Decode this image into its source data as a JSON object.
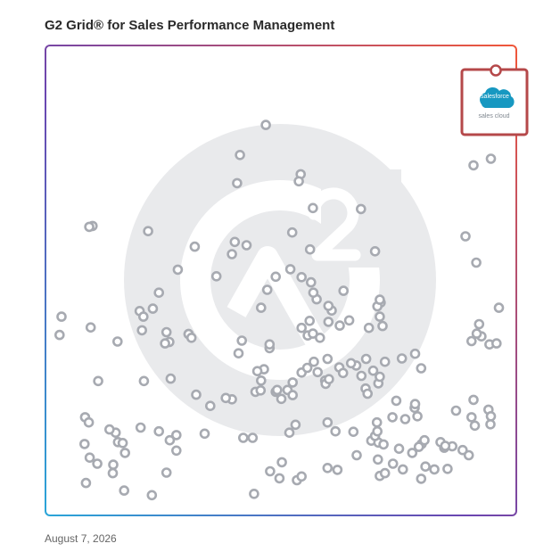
{
  "title": "G2 Grid® for Sales Performance Management",
  "date": "August 7, 2026",
  "colors": {
    "highlight": "#b5484a",
    "point": "#a7aab1",
    "watermark": "#e9eaec",
    "salesforce_blue": "#1798c1"
  },
  "highlight_logo": {
    "brand": "salesforce",
    "product": "sales cloud"
  },
  "chart_data": {
    "type": "scatter",
    "xlabel": "",
    "ylabel": "",
    "xlim": [
      0,
      100
    ],
    "ylim": [
      0,
      100
    ],
    "grid": "quadrants at 50/50",
    "highlighted": {
      "label": "salesforce sales cloud",
      "x": 96,
      "y": 94
    },
    "points": [
      [
        46.8,
        83.1
      ],
      [
        41.3,
        76.7
      ],
      [
        54.2,
        72.6
      ],
      [
        53.8,
        71.1
      ],
      [
        40.7,
        70.7
      ],
      [
        56.4,
        49.6
      ],
      [
        52.0,
        52.4
      ],
      [
        54.4,
        50.7
      ],
      [
        90.9,
        74.5
      ],
      [
        94.6,
        75.9
      ],
      [
        56.8,
        65.4
      ],
      [
        67.0,
        65.2
      ],
      [
        52.4,
        60.2
      ],
      [
        21.8,
        60.5
      ],
      [
        42.7,
        57.5
      ],
      [
        39.6,
        55.6
      ],
      [
        56.2,
        56.6
      ],
      [
        28.1,
        52.3
      ],
      [
        40.2,
        58.2
      ],
      [
        10.0,
        61.6
      ],
      [
        9.3,
        61.4
      ],
      [
        89.2,
        59.4
      ],
      [
        91.5,
        53.8
      ],
      [
        70.0,
        56.2
      ],
      [
        31.7,
        57.2
      ],
      [
        36.3,
        50.9
      ],
      [
        48.9,
        50.8
      ],
      [
        24.1,
        47.4
      ],
      [
        20.0,
        43.5
      ],
      [
        22.8,
        44.0
      ],
      [
        47.1,
        48.0
      ],
      [
        45.8,
        44.2
      ],
      [
        54.4,
        39.9
      ],
      [
        55.7,
        38.3
      ],
      [
        56.8,
        38.7
      ],
      [
        58.3,
        37.8
      ],
      [
        63.3,
        47.8
      ],
      [
        62.5,
        40.4
      ],
      [
        60.8,
        43.6
      ],
      [
        60.1,
        44.6
      ],
      [
        56.1,
        41.4
      ],
      [
        57.6,
        46.0
      ],
      [
        56.9,
        47.4
      ],
      [
        60.1,
        41.2
      ],
      [
        64.5,
        41.5
      ],
      [
        68.7,
        39.9
      ],
      [
        71.2,
        45.3
      ],
      [
        70.5,
        44.5
      ],
      [
        71.0,
        45.9
      ],
      [
        71.6,
        40.3
      ],
      [
        71.0,
        42.3
      ],
      [
        92.6,
        38.1
      ],
      [
        90.5,
        37.1
      ],
      [
        94.3,
        36.4
      ],
      [
        91.6,
        38.7
      ],
      [
        92.1,
        40.7
      ],
      [
        96.3,
        44.2
      ],
      [
        20.5,
        39.4
      ],
      [
        20.8,
        42.3
      ],
      [
        30.4,
        38.6
      ],
      [
        30.4,
        38.6
      ],
      [
        25.7,
        39.0
      ],
      [
        26.3,
        36.9
      ],
      [
        25.4,
        36.6
      ],
      [
        9.6,
        40.0
      ],
      [
        15.3,
        37.0
      ],
      [
        3.4,
        42.3
      ],
      [
        3.0,
        38.4
      ],
      [
        31.0,
        37.8
      ],
      [
        41.7,
        37.2
      ],
      [
        47.6,
        35.6
      ],
      [
        41.0,
        34.5
      ],
      [
        47.6,
        36.4
      ],
      [
        46.4,
        31.1
      ],
      [
        45.0,
        30.7
      ],
      [
        45.8,
        28.7
      ],
      [
        48.9,
        26.3
      ],
      [
        51.4,
        26.7
      ],
      [
        54.4,
        30.4
      ],
      [
        52.5,
        28.3
      ],
      [
        57.8,
        30.5
      ],
      [
        62.4,
        31.5
      ],
      [
        63.2,
        30.3
      ],
      [
        66.0,
        31.9
      ],
      [
        64.9,
        32.4
      ],
      [
        68.1,
        33.3
      ],
      [
        69.6,
        30.8
      ],
      [
        67.1,
        29.7
      ],
      [
        72.1,
        32.7
      ],
      [
        75.7,
        33.4
      ],
      [
        78.5,
        34.4
      ],
      [
        79.8,
        31.3
      ],
      [
        68.0,
        27.0
      ],
      [
        68.4,
        25.9
      ],
      [
        70.7,
        28.1
      ],
      [
        71.0,
        29.5
      ],
      [
        52.5,
        25.6
      ],
      [
        50.1,
        24.8
      ],
      [
        49.2,
        26.7
      ],
      [
        55.6,
        31.4
      ],
      [
        57.0,
        32.7
      ],
      [
        59.4,
        28.7
      ],
      [
        59.9,
        33.3
      ],
      [
        59.5,
        28.0
      ],
      [
        60.2,
        29.0
      ],
      [
        78.4,
        22.9
      ],
      [
        74.5,
        24.4
      ],
      [
        78.5,
        23.7
      ],
      [
        79.0,
        21.1
      ],
      [
        73.7,
        20.9
      ],
      [
        70.4,
        19.8
      ],
      [
        76.4,
        20.5
      ],
      [
        87.2,
        22.3
      ],
      [
        90.5,
        20.9
      ],
      [
        91.2,
        19.1
      ],
      [
        39.6,
        24.7
      ],
      [
        44.6,
        26.3
      ],
      [
        45.7,
        26.6
      ],
      [
        38.3,
        25.0
      ],
      [
        35.0,
        23.3
      ],
      [
        32.0,
        25.7
      ],
      [
        26.6,
        29.1
      ],
      [
        20.9,
        28.6
      ],
      [
        11.2,
        28.6
      ],
      [
        8.4,
        20.9
      ],
      [
        9.2,
        19.8
      ],
      [
        14.9,
        17.6
      ],
      [
        13.6,
        18.3
      ],
      [
        8.3,
        15.2
      ],
      [
        16.9,
        13.3
      ],
      [
        27.8,
        13.8
      ],
      [
        42.0,
        16.5
      ],
      [
        51.8,
        17.6
      ],
      [
        53.1,
        19.3
      ],
      [
        61.6,
        17.9
      ],
      [
        59.9,
        19.8
      ],
      [
        69.2,
        15.9
      ],
      [
        75.1,
        14.2
      ],
      [
        79.9,
        15.2
      ],
      [
        84.7,
        14.4
      ],
      [
        86.4,
        14.7
      ],
      [
        83.9,
        15.6
      ],
      [
        65.4,
        17.8
      ],
      [
        70.7,
        15.5
      ],
      [
        70.0,
        16.9
      ],
      [
        70.5,
        17.9
      ],
      [
        71.8,
        15.1
      ],
      [
        79.3,
        14.6
      ],
      [
        80.5,
        16.0
      ],
      [
        70.6,
        11.9
      ],
      [
        84.9,
        14.8
      ],
      [
        94.1,
        22.5
      ],
      [
        94.6,
        21.1
      ],
      [
        94.5,
        19.4
      ],
      [
        90.9,
        24.6
      ],
      [
        95.8,
        36.6
      ],
      [
        20.2,
        18.7
      ],
      [
        24.1,
        17.9
      ],
      [
        27.8,
        17.1
      ],
      [
        15.4,
        15.6
      ],
      [
        16.4,
        15.4
      ],
      [
        26.4,
        16.0
      ],
      [
        14.4,
        10.8
      ],
      [
        11.0,
        11.0
      ],
      [
        9.4,
        12.3
      ],
      [
        14.3,
        9.0
      ],
      [
        8.6,
        6.9
      ],
      [
        16.7,
        5.3
      ],
      [
        22.6,
        4.3
      ],
      [
        25.7,
        9.1
      ],
      [
        33.8,
        17.4
      ],
      [
        44.0,
        16.5
      ],
      [
        47.7,
        9.4
      ],
      [
        49.7,
        7.9
      ],
      [
        53.4,
        7.5
      ],
      [
        54.4,
        8.3
      ],
      [
        59.9,
        10.1
      ],
      [
        62.0,
        9.7
      ],
      [
        71.0,
        8.4
      ],
      [
        72.1,
        9.0
      ],
      [
        73.8,
        11.0
      ],
      [
        75.9,
        9.8
      ],
      [
        79.8,
        7.8
      ],
      [
        80.7,
        10.4
      ],
      [
        85.4,
        9.9
      ],
      [
        82.6,
        9.8
      ],
      [
        89.9,
        12.8
      ],
      [
        88.6,
        13.9
      ],
      [
        77.9,
        13.3
      ],
      [
        66.1,
        12.8
      ],
      [
        44.3,
        4.6
      ],
      [
        50.2,
        11.3
      ]
    ]
  }
}
